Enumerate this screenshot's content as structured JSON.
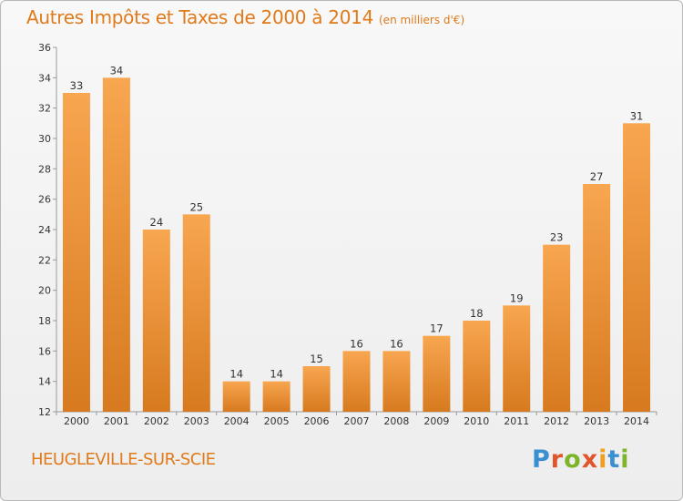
{
  "header": {
    "title": "Autres Impôts et Taxes de 2000 à 2014",
    "unit": "(en milliers d'€)"
  },
  "footer": {
    "commune": "HEUGLEVILLE-SUR-SCIE",
    "logo": "Proxiti"
  },
  "colors": {
    "accent": "#e07a1a",
    "bar_light": "#f8a650",
    "bar_dark": "#d77a1f",
    "logo_letters": [
      "#3a8fd0",
      "#e0552a",
      "#7cb52a",
      "#e0552a",
      "#f0a020",
      "#3a8fd0",
      "#7cb52a"
    ]
  },
  "chart_data": {
    "type": "bar",
    "title": "Autres Impôts et Taxes de 2000 à 2014",
    "subtitle": "(en milliers d'€)",
    "xlabel": "",
    "ylabel": "",
    "categories": [
      "2000",
      "2001",
      "2002",
      "2003",
      "2004",
      "2005",
      "2006",
      "2007",
      "2008",
      "2009",
      "2010",
      "2011",
      "2012",
      "2013",
      "2014"
    ],
    "values": [
      33,
      34,
      24,
      25,
      14,
      14,
      15,
      16,
      16,
      17,
      18,
      19,
      23,
      27,
      31
    ],
    "ylim": [
      12,
      36
    ],
    "yticks": [
      12,
      14,
      16,
      18,
      20,
      22,
      24,
      26,
      28,
      30,
      32,
      34,
      36
    ],
    "grid": false,
    "data_labels": true
  }
}
